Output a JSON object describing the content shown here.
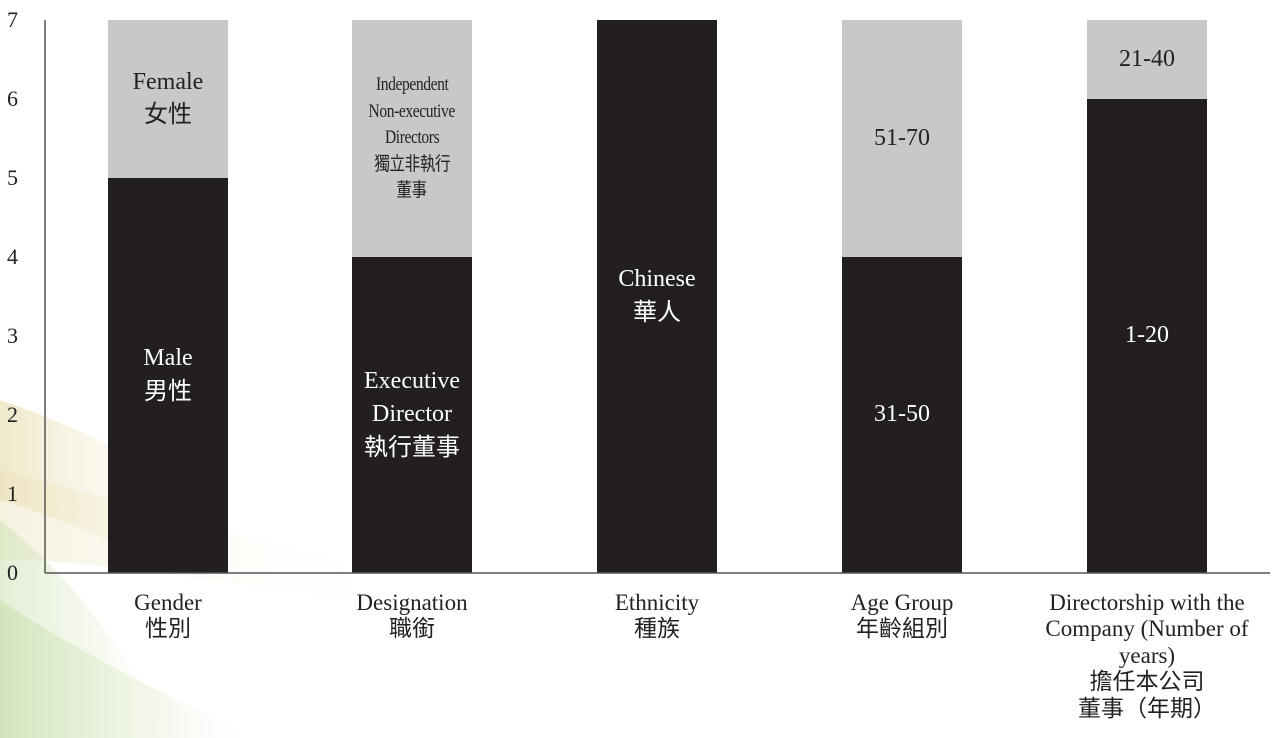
{
  "chart_data": {
    "type": "bar",
    "stacked": true,
    "grid": false,
    "legend": "none",
    "ylim": [
      0,
      7
    ],
    "yticks": [
      "0",
      "1",
      "2",
      "3",
      "4",
      "5",
      "6",
      "7"
    ],
    "colors": {
      "bottom": "#231f20",
      "top": "#c8c8c8",
      "axis": "#555555"
    },
    "categories": [
      {
        "label": [
          "Gender",
          "性別"
        ],
        "segments": [
          {
            "value": 5,
            "color": "#231f20",
            "label": [
              "Male",
              "男性"
            ]
          },
          {
            "value": 2,
            "color": "#c8c8c8",
            "label": [
              "Female",
              "女性"
            ]
          }
        ]
      },
      {
        "label": [
          "Designation",
          "職銜"
        ],
        "segments": [
          {
            "value": 4,
            "color": "#231f20",
            "label": [
              "Executive",
              "Director",
              "執行董事"
            ]
          },
          {
            "value": 3,
            "color": "#c8c8c8",
            "label": [
              "Independent",
              "Non-executive",
              "Directors",
              "獨立非執行",
              "董事"
            ],
            "compact": true
          }
        ]
      },
      {
        "label": [
          "Ethnicity",
          "種族"
        ],
        "segments": [
          {
            "value": 7,
            "color": "#231f20",
            "label": [
              "Chinese",
              "華人"
            ]
          }
        ]
      },
      {
        "label": [
          "Age Group",
          "年齡組別"
        ],
        "segments": [
          {
            "value": 4,
            "color": "#231f20",
            "label": [
              "31-50"
            ]
          },
          {
            "value": 3,
            "color": "#c8c8c8",
            "label": [
              "51-70"
            ]
          }
        ]
      },
      {
        "label": [
          "Directorship with the",
          "Company (Number of",
          "years)",
          "擔任本公司",
          "董事（年期）"
        ],
        "segments": [
          {
            "value": 6,
            "color": "#231f20",
            "label": [
              "1-20"
            ]
          },
          {
            "value": 1,
            "color": "#c8c8c8",
            "label": [
              "21-40"
            ]
          }
        ]
      }
    ]
  }
}
